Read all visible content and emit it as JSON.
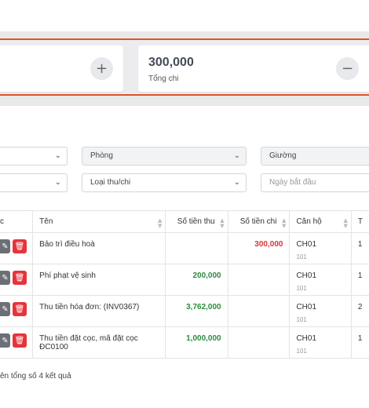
{
  "summary": {
    "card1": {
      "add_symbol": "+"
    },
    "card2": {
      "value": "300,000",
      "label": "Tổng chi",
      "remove_symbol": "−"
    }
  },
  "filters": {
    "room": "Phòng",
    "bed": "Giường",
    "type": "Loại thu/chi",
    "start_date_placeholder": "Ngày bắt đầu"
  },
  "table": {
    "headers": [
      "c",
      "Tên",
      "Số tiền thu",
      "Số tiền chi",
      "Căn hộ",
      "T"
    ],
    "rows": [
      {
        "name": "Bảo trì điều hoà",
        "income": "",
        "expense": "300,000",
        "unit": "CH01",
        "unit_sub": "101",
        "t": "1"
      },
      {
        "name": "Phí phạt vệ sinh",
        "income": "200,000",
        "expense": "",
        "unit": "CH01",
        "unit_sub": "101",
        "t": "1"
      },
      {
        "name": "Thu tiền hóa đơn: (INV0367)",
        "income": "3,762,000",
        "expense": "",
        "unit": "CH01",
        "unit_sub": "101",
        "t": "2"
      },
      {
        "name": "Thu tiền đặt cọc, mã đặt cọc ĐC0100",
        "income": "1,000,000",
        "expense": "",
        "unit": "CH01",
        "unit_sub": "101",
        "t": "1"
      }
    ]
  },
  "footer": {
    "text": "ên tổng số 4 kết quả"
  },
  "icons": {
    "edit": "edit-icon",
    "delete": "trash-icon",
    "chevron": "chevron-down-icon",
    "sort": "sort-icon"
  },
  "colors": {
    "accent_border": "#e0542c",
    "income": "#2e8b3e",
    "expense": "#d9343b",
    "delete_button": "#e5343b",
    "edit_button": "#6c7076"
  }
}
